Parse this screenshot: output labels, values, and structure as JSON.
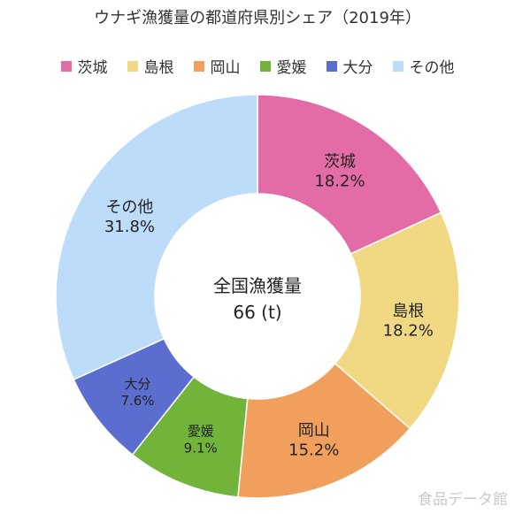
{
  "chart_data": {
    "type": "pie",
    "title": "ウナギ漁獲量の都道府県別シェア（2019年）",
    "categories": [
      "茨城",
      "島根",
      "岡山",
      "愛媛",
      "大分",
      "その他"
    ],
    "values": [
      18.2,
      18.2,
      15.2,
      9.1,
      7.6,
      31.8
    ],
    "value_labels": [
      "18.2%",
      "18.2%",
      "15.2%",
      "9.1%",
      "7.6%",
      "31.8%"
    ],
    "colors": [
      "#e46ca6",
      "#f0d982",
      "#f0a05c",
      "#72b43a",
      "#5b6ecf",
      "#bcdcf9"
    ],
    "legend_position": "top",
    "center_label": "全国漁獲量",
    "center_value": "66 (t)"
  },
  "watermark": "食品データ館"
}
